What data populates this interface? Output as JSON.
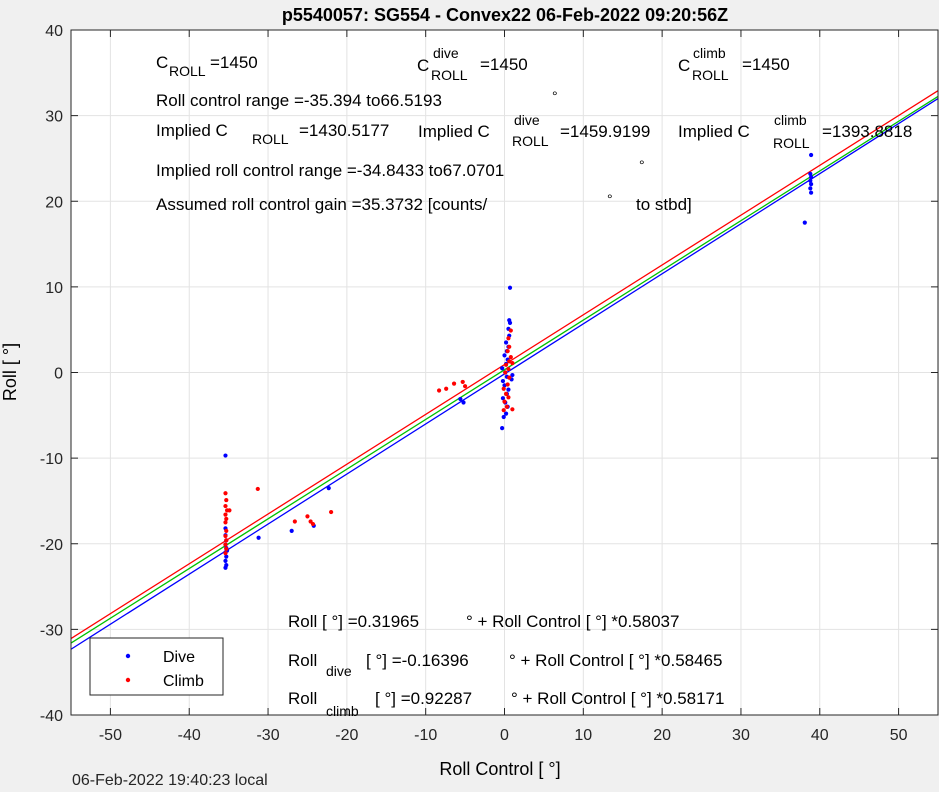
{
  "chart_data": {
    "type": "scatter",
    "title": "p5540057: SG554 - Convex22 06-Feb-2022 09:20:56Z",
    "xlabel": "Roll Control [   °]",
    "ylabel": "Roll [  °]",
    "xlim": [
      -55,
      55
    ],
    "ylim": [
      -40,
      40
    ],
    "xticks": [
      -50,
      -40,
      -30,
      -20,
      -10,
      0,
      10,
      20,
      30,
      40,
      50
    ],
    "yticks": [
      -40,
      -30,
      -20,
      -10,
      0,
      10,
      20,
      30,
      40
    ],
    "grid": true,
    "legend": {
      "placement": "bottom-left",
      "entries": [
        "Dive",
        "Climb"
      ]
    },
    "series": [
      {
        "name": "Dive",
        "color": "#0000ff",
        "points": [
          [
            -35.4,
            -9.7
          ],
          [
            -35.4,
            -18.2
          ],
          [
            -35.4,
            -19
          ],
          [
            -35.3,
            -19.6
          ],
          [
            -35.4,
            -20.1
          ],
          [
            -35.3,
            -20.5
          ],
          [
            -35.4,
            -21
          ],
          [
            -35.3,
            -21.5
          ],
          [
            -35.4,
            -22
          ],
          [
            -35.3,
            -22.5
          ],
          [
            -35.4,
            -22.8
          ],
          [
            -35.2,
            -20.8
          ],
          [
            -31.2,
            -19.3
          ],
          [
            -27,
            -18.5
          ],
          [
            -24.2,
            -17.9
          ],
          [
            -22.3,
            -13.5
          ],
          [
            -5.6,
            -3.1
          ],
          [
            -5.2,
            -3.5
          ],
          [
            -0.3,
            -6.5
          ],
          [
            -0.1,
            -5.2
          ],
          [
            0.2,
            -4.8
          ],
          [
            0.4,
            -4
          ],
          [
            0.1,
            -3.5
          ],
          [
            -0.2,
            -3
          ],
          [
            0.3,
            -2.5
          ],
          [
            0.5,
            -2
          ],
          [
            0,
            -1.5
          ],
          [
            -0.2,
            -1
          ],
          [
            0.3,
            -0.5
          ],
          [
            0.1,
            0
          ],
          [
            -0.3,
            0.5
          ],
          [
            0.2,
            1
          ],
          [
            0.4,
            1.5
          ],
          [
            0,
            2
          ],
          [
            0.3,
            2.5
          ],
          [
            0.5,
            3
          ],
          [
            0.2,
            3.5
          ],
          [
            0.6,
            4.3
          ],
          [
            0.5,
            5.1
          ],
          [
            0.7,
            5.8
          ],
          [
            0.6,
            6.1
          ],
          [
            0.7,
            9.9
          ],
          [
            0.9,
            -0.8
          ],
          [
            1,
            -0.3
          ],
          [
            38.1,
            17.5
          ],
          [
            38.9,
            21
          ],
          [
            38.8,
            21.5
          ],
          [
            38.9,
            22
          ],
          [
            38.8,
            22.4
          ],
          [
            38.9,
            22.8
          ],
          [
            38.8,
            23.2
          ],
          [
            38.9,
            25.4
          ]
        ]
      },
      {
        "name": "Climb",
        "color": "#ff0000",
        "points": [
          [
            -35.4,
            -14.1
          ],
          [
            -35.3,
            -14.9
          ],
          [
            -35.4,
            -15.6
          ],
          [
            -35.2,
            -16.1
          ],
          [
            -34.9,
            -16.1
          ],
          [
            -35.4,
            -16.6
          ],
          [
            -35.3,
            -17.1
          ],
          [
            -35.4,
            -17.5
          ],
          [
            -35.3,
            -18.5
          ],
          [
            -35.4,
            -19.1
          ],
          [
            -35.3,
            -19.6
          ],
          [
            -35.4,
            -20.1
          ],
          [
            -35.3,
            -20.6
          ],
          [
            -35.4,
            -21.1
          ],
          [
            -31.3,
            -13.6
          ],
          [
            -26.6,
            -17.4
          ],
          [
            -25,
            -16.8
          ],
          [
            -24.6,
            -17.4
          ],
          [
            -24.3,
            -17.7
          ],
          [
            -22,
            -16.3
          ],
          [
            -8.3,
            -2.1
          ],
          [
            -7.4,
            -1.9
          ],
          [
            -6.4,
            -1.3
          ],
          [
            -5.3,
            -1.1
          ],
          [
            -5,
            -1.6
          ],
          [
            -0.1,
            -4.4
          ],
          [
            0.3,
            -4
          ],
          [
            0,
            -3.4
          ],
          [
            0.5,
            -2.9
          ],
          [
            0.2,
            -2.5
          ],
          [
            -0.1,
            -1.9
          ],
          [
            0.4,
            -1.4
          ],
          [
            0.6,
            -0.6
          ],
          [
            0.1,
            0
          ],
          [
            0.5,
            0.4
          ],
          [
            0.2,
            0.9
          ],
          [
            0.6,
            1.3
          ],
          [
            0.8,
            1.8
          ],
          [
            1,
            1.1
          ],
          [
            0.4,
            2.5
          ],
          [
            0.6,
            3
          ],
          [
            0.5,
            4
          ],
          [
            0.8,
            4.9
          ],
          [
            1,
            -4.3
          ]
        ]
      }
    ],
    "fit_lines": [
      {
        "name": "Roll",
        "color": "#00c000",
        "intercept": 0.31965,
        "slope": 0.58037
      },
      {
        "name": "Roll dive",
        "color": "#0000ff",
        "intercept": -0.16396,
        "slope": 0.58465
      },
      {
        "name": "Roll climb",
        "color": "#ff0000",
        "intercept": 0.92287,
        "slope": 0.58171
      }
    ],
    "annotations": {
      "c_roll": "=1450",
      "c_roll_dive": "=1450",
      "c_roll_climb": "=1450",
      "roll_range": "Roll control range =-35.394 to66.5193",
      "implied_prefix": "Implied C",
      "implied": "=1430.5177",
      "implied_dive": "=1459.9199",
      "implied_climb": "=1393.8818",
      "implied_range": "Implied roll control range =-34.8433 to67.0701",
      "gain": "Assumed roll control gain =35.3732 [counts/",
      "gain_suffix": "to stbd]",
      "eq_roll": "Roll [  °] =0.31965",
      "eq_roll_tail": "° + Roll Control [    °] *0.58037",
      "eq_dive_tail": "[  °] =-0.16396",
      "eq_dive_tail2": "° + Roll Control [    °] *0.58465",
      "eq_climb_tail": "[  °] =0.92287",
      "eq_climb_tail2": "° + Roll Control [    °] *0.58171",
      "sym_C": "C",
      "sub_roll": "ROLL",
      "sup_dive": "dive",
      "sup_climb": "climb",
      "word_roll": "Roll",
      "sub_dive": "dive",
      "sub_climb": "climb",
      "deg": "°"
    },
    "footer": "06-Feb-2022 19:40:23 local"
  }
}
